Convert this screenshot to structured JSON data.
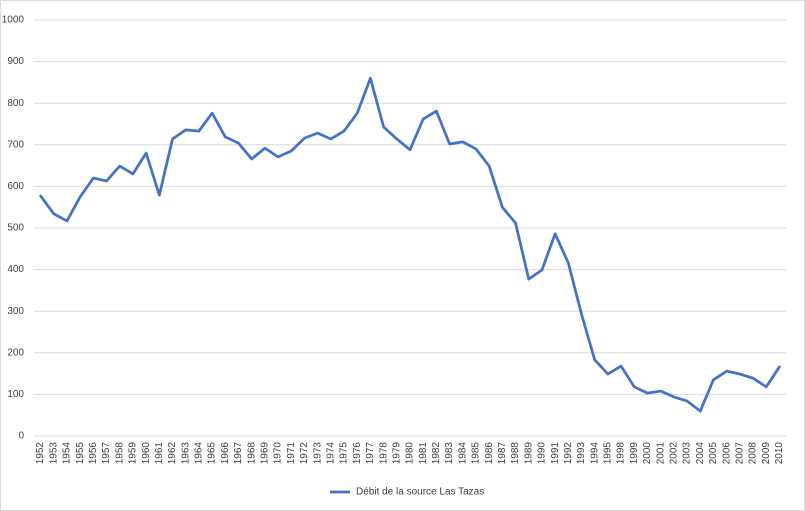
{
  "chart_data": {
    "type": "line",
    "categories": [
      "1952",
      "1953",
      "1954",
      "1955",
      "1956",
      "1957",
      "1958",
      "1959",
      "1960",
      "1961",
      "1962",
      "1963",
      "1964",
      "1965",
      "1966",
      "1967",
      "1968",
      "1969",
      "1970",
      "1971",
      "1972",
      "1973",
      "1974",
      "1975",
      "1976",
      "1977",
      "1978",
      "1979",
      "1980",
      "1981",
      "1982",
      "1983",
      "1984",
      "1985",
      "1986",
      "1987",
      "1988",
      "1989",
      "1990",
      "1991",
      "1992",
      "1993",
      "1994",
      "1995",
      "1998",
      "1999",
      "2000",
      "2001",
      "2002",
      "2003",
      "2004",
      "2005",
      "2006",
      "2007",
      "2008",
      "2009",
      "2010"
    ],
    "series": [
      {
        "name": "Débit de la source Las Tazas",
        "color": "#4472c4",
        "values": [
          577,
          534,
          517,
          575,
          620,
          613,
          649,
          630,
          680,
          579,
          714,
          736,
          733,
          776,
          719,
          704,
          666,
          692,
          671,
          685,
          716,
          728,
          714,
          733,
          776,
          860,
          743,
          714,
          688,
          762,
          781,
          702,
          707,
          690,
          649,
          550,
          512,
          377,
          399,
          486,
          416,
          293,
          183,
          149,
          168,
          118,
          103,
          108,
          94,
          84,
          60,
          135,
          156,
          149,
          139,
          118,
          166
        ]
      }
    ],
    "ylim": [
      0,
      1000
    ],
    "yticks": [
      0,
      100,
      200,
      300,
      400,
      500,
      600,
      700,
      800,
      900,
      1000
    ],
    "grid": true,
    "legend": "bottom"
  }
}
